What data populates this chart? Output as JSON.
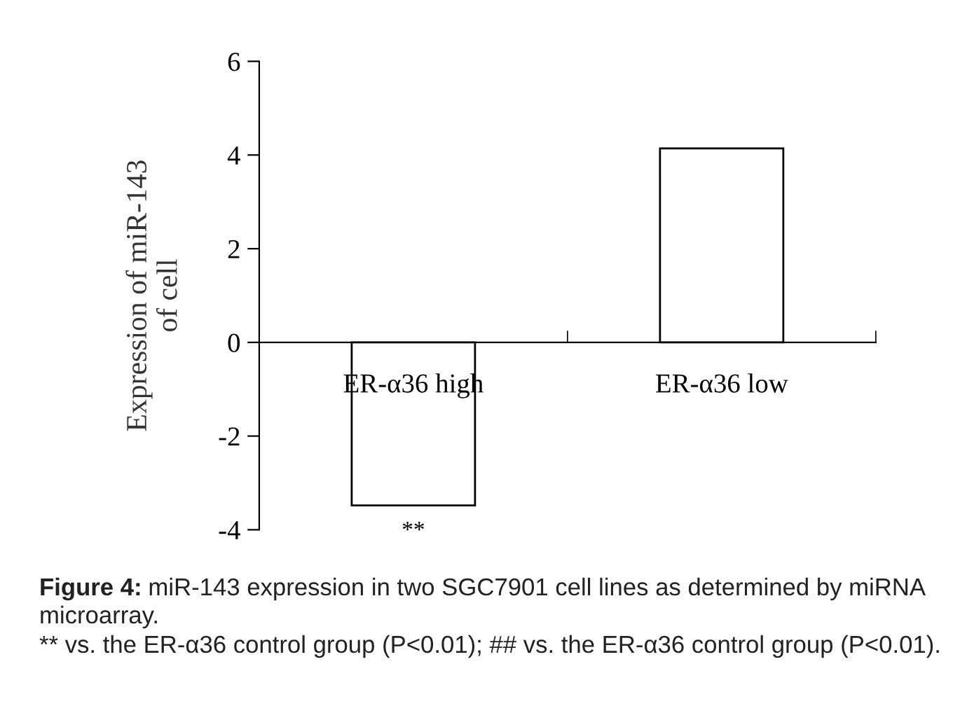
{
  "chart_data": {
    "type": "bar",
    "categories": [
      "ER-α36 high",
      "ER-α36 low"
    ],
    "values": [
      -3.48,
      4.14
    ],
    "color": "#ffffff",
    "ylabel": "Expression of miR-143\nof cell",
    "ylim": [
      -4,
      6
    ],
    "yticks": [
      -4,
      -2,
      0,
      2,
      4,
      6
    ],
    "grid": false,
    "legend": false,
    "annotations": [
      {
        "text": "**",
        "x": "ER-α36 high",
        "y": -3.48
      },
      "Figure 4:",
      "miR-143 expression in two SGC7901 cell lines as determined by miRNA microarray.",
      "** vs. the ER-α36 control group (P<0.01); ## vs. the ER-α36 control group (P<0.01)."
    ]
  }
}
